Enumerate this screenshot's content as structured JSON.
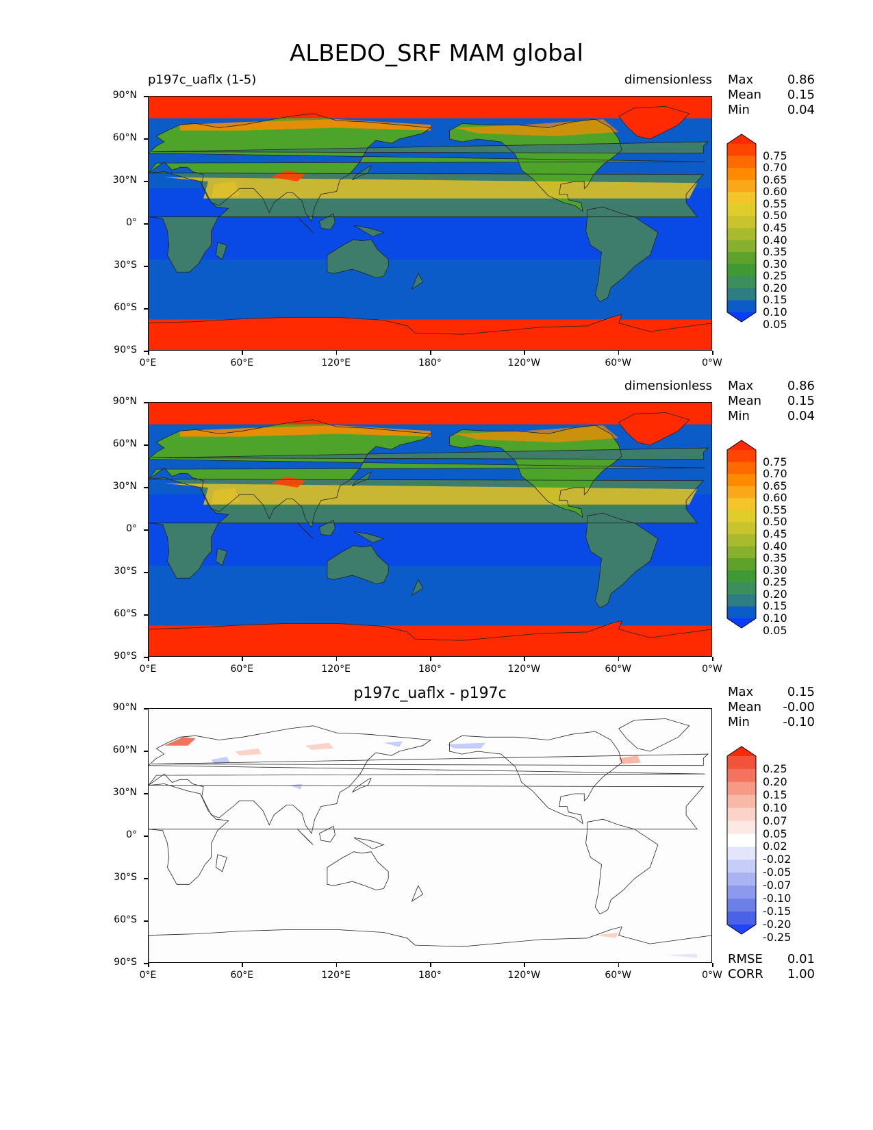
{
  "figure_title": "ALBEDO_SRF MAM global",
  "colors": {
    "ocean": "#0b5cc8",
    "ice": "#ff2a00",
    "land_low": "#3e7d6c",
    "land_mid": "#4ea32b",
    "land_high": "#e2c12a",
    "diff_bg": "#fdfdfd"
  },
  "axes": {
    "y_ticks": [
      "90°N",
      "60°N",
      "30°N",
      "0°",
      "30°S",
      "60°S",
      "90°S"
    ],
    "x_ticks": [
      "0°E",
      "60°E",
      "120°E",
      "180°",
      "120°W",
      "60°W",
      "0°W"
    ]
  },
  "chart_data": [
    {
      "type": "heatmap",
      "panel": "test",
      "title_left": "p197c_uaflx (1-5)",
      "title_center": "",
      "title_right": "dimensionless",
      "stats": [
        {
          "label": "Max",
          "value": "0.86"
        },
        {
          "label": "Mean",
          "value": "0.15"
        },
        {
          "label": "Min",
          "value": "0.04"
        }
      ],
      "colorbar": {
        "ticks": [
          "0.75",
          "0.70",
          "0.65",
          "0.60",
          "0.55",
          "0.50",
          "0.45",
          "0.40",
          "0.35",
          "0.30",
          "0.25",
          "0.20",
          "0.15",
          "0.10",
          "0.05"
        ],
        "colors": [
          "#ff2a00",
          "#ff4500",
          "#ff6a00",
          "#ff8a00",
          "#fba71a",
          "#f3c528",
          "#e0cc2a",
          "#c9c42c",
          "#a9ba2d",
          "#86b02e",
          "#5ea12b",
          "#3f9a35",
          "#3c8f5c",
          "#2d7d82",
          "#0b5cc8",
          "#0a3cff"
        ]
      },
      "value_range": [
        0.04,
        0.86
      ]
    },
    {
      "type": "heatmap",
      "panel": "reference",
      "title_left": "",
      "title_center": "",
      "title_right": "dimensionless",
      "stats": [
        {
          "label": "Max",
          "value": "0.86"
        },
        {
          "label": "Mean",
          "value": "0.15"
        },
        {
          "label": "Min",
          "value": "0.04"
        }
      ],
      "colorbar": {
        "ticks": [
          "0.75",
          "0.70",
          "0.65",
          "0.60",
          "0.55",
          "0.50",
          "0.45",
          "0.40",
          "0.35",
          "0.30",
          "0.25",
          "0.20",
          "0.15",
          "0.10",
          "0.05"
        ],
        "colors": [
          "#ff2a00",
          "#ff4500",
          "#ff6a00",
          "#ff8a00",
          "#fba71a",
          "#f3c528",
          "#e0cc2a",
          "#c9c42c",
          "#a9ba2d",
          "#86b02e",
          "#5ea12b",
          "#3f9a35",
          "#3c8f5c",
          "#2d7d82",
          "#0b5cc8",
          "#0a3cff"
        ]
      },
      "value_range": [
        0.04,
        0.86
      ]
    },
    {
      "type": "heatmap",
      "panel": "difference",
      "title_left": "",
      "title_center": "p197c_uaflx - p197c",
      "title_right": "",
      "stats": [
        {
          "label": "Max",
          "value": "0.15"
        },
        {
          "label": "Mean",
          "value": "-0.00"
        },
        {
          "label": "Min",
          "value": "-0.10"
        }
      ],
      "extra_stats": [
        {
          "label": "RMSE",
          "value": "0.01"
        },
        {
          "label": "CORR",
          "value": "1.00"
        }
      ],
      "colorbar": {
        "ticks": [
          "0.25",
          "0.20",
          "0.15",
          "0.10",
          "0.07",
          "0.05",
          "0.02",
          "-0.02",
          "-0.05",
          "-0.07",
          "-0.10",
          "-0.15",
          "-0.20",
          "-0.25"
        ],
        "colors": [
          "#ff2a00",
          "#f2533b",
          "#f4735e",
          "#f69a85",
          "#f8b8a8",
          "#fbd3c8",
          "#fde9e3",
          "#ffffff",
          "#e3e6fb",
          "#c6cdf6",
          "#a9b3f1",
          "#8c99ec",
          "#6d80e8",
          "#4a63e6",
          "#1f43ff"
        ]
      },
      "value_range": [
        -0.1,
        0.15
      ]
    }
  ]
}
